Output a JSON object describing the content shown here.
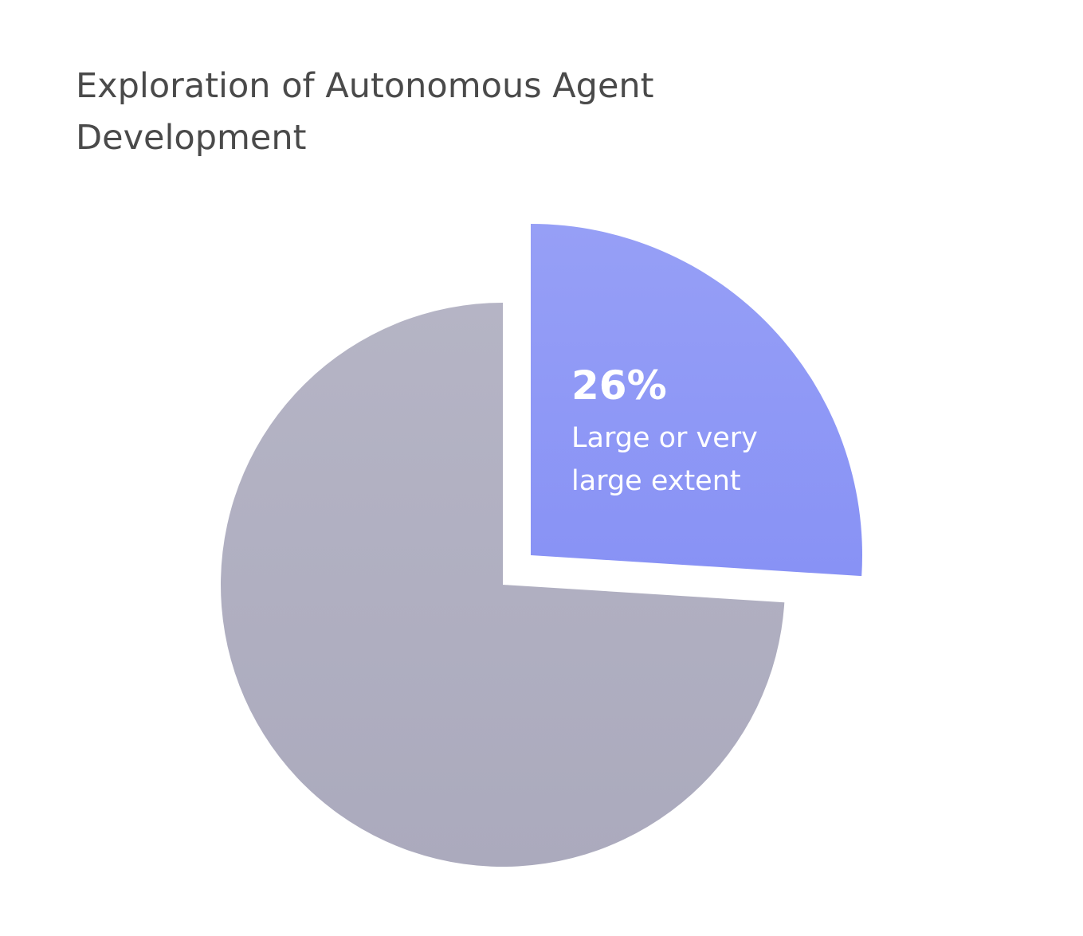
{
  "chart_data": {
    "type": "pie",
    "title": "Exploration of Autonomous Agent Development",
    "categories": [
      "Large or very large extent",
      null
    ],
    "values": [
      26,
      74
    ],
    "value_labels": [
      "26%",
      null
    ],
    "colors": [
      "#8892f5",
      "#abaabd"
    ]
  }
}
